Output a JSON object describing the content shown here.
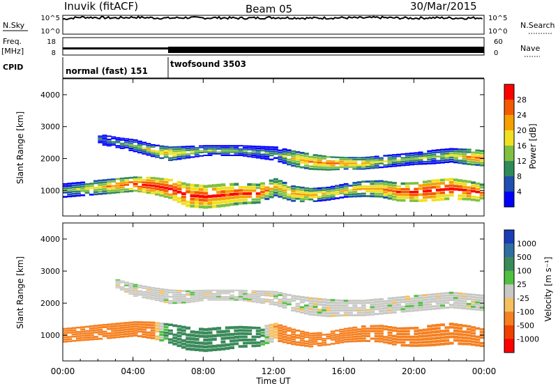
{
  "header": {
    "station": "Inuvik (fitACF)",
    "beam": "Beam 05",
    "date": "30/Mar/2015"
  },
  "top_panels": {
    "nsky": {
      "label": "N.Sky",
      "right_label": "N.Search",
      "ticks_left": [
        "10^5",
        "10^0"
      ],
      "ticks_right": [
        "10^5",
        "10^0"
      ]
    },
    "freq": {
      "label_line1": "Freq.",
      "label_line2": "[MHz]",
      "right_label": "Nave",
      "ticks_left": [
        "18",
        "8"
      ],
      "ticks_right": [
        "60",
        "0"
      ]
    },
    "cpid": {
      "label": "CPID",
      "modes": [
        {
          "name": "normal (fast) 151",
          "start_hour": 0,
          "end_hour": 6
        },
        {
          "name": "twofsound 3503",
          "start_hour": 6,
          "end_hour": 24
        }
      ]
    }
  },
  "panels": {
    "power": {
      "ylabel": "Slant Range [km]",
      "colorbar_label": "Power [dB]",
      "colorbar_ticks": [
        "28",
        "24",
        "20",
        "16",
        "12",
        "8",
        "4"
      ]
    },
    "velocity": {
      "ylabel": "Slant Range [km]",
      "colorbar_label": "Velocity [m s⁻¹]",
      "colorbar_ticks": [
        "1000",
        "500",
        "100",
        "25",
        "-25",
        "-100",
        "-500",
        "-1000"
      ]
    }
  },
  "colors": {
    "power_scale": [
      "#0000ff",
      "#1e4fb0",
      "#2f8a5a",
      "#7fc040",
      "#f0e020",
      "#f5a000",
      "#f55a00",
      "#ff0000"
    ],
    "velocity_scale": [
      "#1a3cb5",
      "#2f6fa0",
      "#3a8a5a",
      "#50c040",
      "#c8c8c4",
      "#f5c060",
      "#f58020",
      "#f04000",
      "#ff0000"
    ]
  },
  "chart_data": [
    {
      "type": "line",
      "name": "nsky-nsearch-noise",
      "x_unit": "hour UT",
      "x": [
        0,
        1,
        2,
        3,
        4,
        5,
        6,
        7,
        8,
        9,
        10,
        11,
        12,
        13,
        14,
        15,
        16,
        17,
        18,
        19,
        20,
        21,
        22,
        23,
        24
      ],
      "series": [
        {
          "values": [
            0.8,
            0.9,
            0.88,
            0.86,
            0.9,
            0.87,
            0.85,
            0.88,
            0.86,
            0.87,
            0.85,
            0.86,
            0.88,
            0.87,
            0.85,
            0.86,
            0.87,
            0.86,
            0.88,
            0.86,
            0.85,
            0.87,
            0.86,
            0.85,
            0.87
          ]
        }
      ],
      "ylim": [
        0,
        1
      ]
    },
    {
      "type": "line",
      "name": "freq-nave",
      "x_unit": "hour UT",
      "x": [
        0,
        6,
        24
      ],
      "series": [
        {
          "values": [
            11,
            11,
            11
          ]
        }
      ],
      "ylim": [
        8,
        18
      ]
    },
    {
      "type": "heatmap",
      "name": "power",
      "xlabel": "Time UT",
      "ylabel": "Slant Range [km]",
      "xlim": [
        0,
        24
      ],
      "ylim": [
        200,
        4500
      ],
      "x_ticks": [
        "00:00",
        "04:00",
        "08:00",
        "12:00",
        "16:00",
        "20:00",
        "00:00"
      ],
      "y_ticks": [
        1000,
        2000,
        3000,
        4000
      ],
      "colorbar_range": [
        0,
        30
      ],
      "bands": [
        {
          "hours": [
            0,
            1,
            2,
            3,
            4,
            5,
            6,
            7,
            8,
            9,
            10,
            11,
            12,
            13,
            14,
            15,
            16,
            17,
            18,
            19,
            20,
            21,
            22,
            23,
            24
          ],
          "center_km": [
            1000,
            1050,
            1100,
            1150,
            1200,
            1150,
            1050,
            850,
            800,
            850,
            900,
            900,
            1100,
            900,
            850,
            900,
            1000,
            1050,
            1050,
            950,
            950,
            1000,
            1050,
            1000,
            900
          ],
          "width_km": [
            400,
            400,
            420,
            420,
            420,
            480,
            550,
            650,
            650,
            650,
            600,
            550,
            500,
            450,
            400,
            380,
            400,
            450,
            480,
            520,
            550,
            600,
            600,
            550,
            500
          ],
          "power_db": [
            12,
            16,
            20,
            24,
            27,
            29,
            29,
            29,
            28,
            27,
            26,
            25,
            20,
            22,
            20,
            18,
            18,
            20,
            22,
            26,
            28,
            29,
            28,
            27,
            24
          ]
        },
        {
          "hours": [
            2,
            3,
            4,
            5,
            6,
            7,
            8,
            9,
            10,
            11,
            12,
            13,
            14,
            15,
            16,
            17,
            18,
            19,
            20,
            21,
            22,
            23,
            24
          ],
          "center_km": [
            2600,
            2500,
            2400,
            2250,
            2150,
            2200,
            2250,
            2250,
            2250,
            2200,
            2150,
            2000,
            1900,
            1850,
            1850,
            1850,
            1900,
            1950,
            2000,
            2050,
            2100,
            2050,
            2000
          ],
          "width_km": [
            300,
            300,
            350,
            350,
            400,
            350,
            300,
            300,
            300,
            350,
            400,
            450,
            450,
            400,
            350,
            350,
            350,
            350,
            350,
            400,
            400,
            450,
            450
          ],
          "power_db": [
            8,
            10,
            14,
            18,
            20,
            16,
            14,
            14,
            12,
            12,
            10,
            20,
            22,
            24,
            22,
            20,
            16,
            14,
            14,
            14,
            16,
            22,
            24
          ]
        }
      ]
    },
    {
      "type": "heatmap",
      "name": "velocity",
      "xlabel": "Time UT",
      "ylabel": "Slant Range [km]",
      "xlim": [
        0,
        24
      ],
      "ylim": [
        200,
        4500
      ],
      "x_ticks": [
        "00:00",
        "04:00",
        "08:00",
        "12:00",
        "16:00",
        "20:00",
        "00:00"
      ],
      "y_ticks": [
        1000,
        2000,
        3000,
        4000
      ],
      "colorbar_range": [
        -1000,
        1000
      ],
      "bands": [
        {
          "hours": [
            0,
            1,
            2,
            3,
            4,
            5,
            6,
            7,
            8,
            9,
            10,
            11,
            12,
            13,
            14,
            15,
            16,
            17,
            18,
            19,
            20,
            21,
            22,
            23,
            24
          ],
          "center_km": [
            1000,
            1050,
            1100,
            1150,
            1200,
            1150,
            1050,
            900,
            850,
            900,
            950,
            950,
            1100,
            950,
            850,
            900,
            1000,
            1050,
            1050,
            950,
            950,
            1000,
            1050,
            1000,
            900
          ],
          "width_km": [
            400,
            400,
            420,
            420,
            420,
            480,
            550,
            650,
            650,
            650,
            600,
            550,
            500,
            450,
            400,
            380,
            400,
            450,
            480,
            520,
            550,
            600,
            600,
            550,
            500
          ],
          "velocity": [
            -150,
            -200,
            -200,
            -250,
            -200,
            -150,
            200,
            250,
            200,
            200,
            200,
            150,
            -100,
            -200,
            -200,
            -150,
            -200,
            -150,
            -200,
            -150,
            -150,
            -200,
            -200,
            -150,
            -200
          ]
        },
        {
          "hours": [
            3,
            4,
            5,
            6,
            7,
            8,
            9,
            10,
            11,
            12,
            13,
            14,
            15,
            16,
            17,
            18,
            19,
            20,
            21,
            22,
            23,
            24
          ],
          "center_km": [
            2600,
            2400,
            2300,
            2200,
            2200,
            2250,
            2250,
            2250,
            2200,
            2150,
            2000,
            1900,
            1850,
            1850,
            1850,
            1900,
            1950,
            2000,
            2050,
            2100,
            2050,
            2000
          ],
          "width_km": [
            250,
            350,
            350,
            400,
            350,
            300,
            300,
            300,
            350,
            400,
            450,
            500,
            500,
            450,
            450,
            450,
            450,
            450,
            450,
            450,
            450,
            450
          ],
          "velocity": [
            0,
            0,
            0,
            0,
            0,
            0,
            0,
            0,
            0,
            0,
            0,
            0,
            0,
            0,
            0,
            0,
            0,
            0,
            0,
            0,
            0,
            0
          ]
        }
      ]
    }
  ]
}
